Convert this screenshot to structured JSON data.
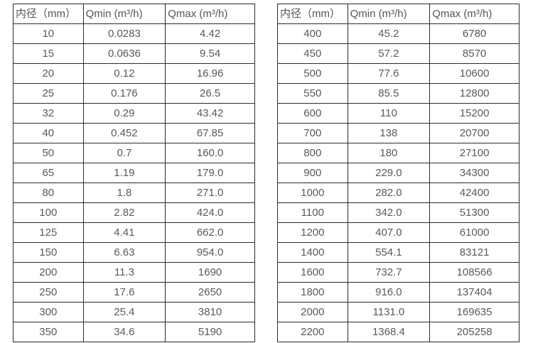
{
  "colors": {
    "border": "#2b2b2b",
    "text": "#595959",
    "background": "#ffffff"
  },
  "tables": [
    {
      "name": "small-diameter-flow-table",
      "headers": [
        "内径（mm）",
        "Qmin (m³/h)",
        "Qmax (m³/h)"
      ],
      "rows": [
        [
          "10",
          "0.0283",
          "4.42"
        ],
        [
          "15",
          "0.0636",
          "9.54"
        ],
        [
          "20",
          "0.12",
          "16.96"
        ],
        [
          "25",
          "0.176",
          "26.5"
        ],
        [
          "32",
          "0.29",
          "43.42"
        ],
        [
          "40",
          "0.452",
          "67.85"
        ],
        [
          "50",
          "0.7",
          "160.0"
        ],
        [
          "65",
          "1.19",
          "179.0"
        ],
        [
          "80",
          "1.8",
          "271.0"
        ],
        [
          "100",
          "2.82",
          "424.0"
        ],
        [
          "125",
          "4.41",
          "662.0"
        ],
        [
          "150",
          "6.63",
          "954.0"
        ],
        [
          "200",
          "11.3",
          "1690"
        ],
        [
          "250",
          "17.6",
          "2650"
        ],
        [
          "300",
          "25.4",
          "3810"
        ],
        [
          "350",
          "34.6",
          "5190"
        ]
      ]
    },
    {
      "name": "large-diameter-flow-table",
      "headers": [
        "内径（mm）",
        "Qmin (m³/h)",
        "Qmax (m³/h)"
      ],
      "rows": [
        [
          "400",
          "45.2",
          "6780"
        ],
        [
          "450",
          "57.2",
          "8570"
        ],
        [
          "500",
          "77.6",
          "10600"
        ],
        [
          "550",
          "85.5",
          "12800"
        ],
        [
          "600",
          "110",
          "15200"
        ],
        [
          "700",
          "138",
          "20700"
        ],
        [
          "800",
          "180",
          "27100"
        ],
        [
          "900",
          "229.0",
          "34300"
        ],
        [
          "1000",
          "282.0",
          "42400"
        ],
        [
          "1100",
          "342.0",
          "51300"
        ],
        [
          "1200",
          "407.0",
          "61000"
        ],
        [
          "1400",
          "554.1",
          "83121"
        ],
        [
          "1600",
          "732.7",
          "108566"
        ],
        [
          "1800",
          "916.0",
          "137404"
        ],
        [
          "2000",
          "1131.0",
          "169635"
        ],
        [
          "2200",
          "1368.4",
          "205258"
        ]
      ]
    }
  ]
}
